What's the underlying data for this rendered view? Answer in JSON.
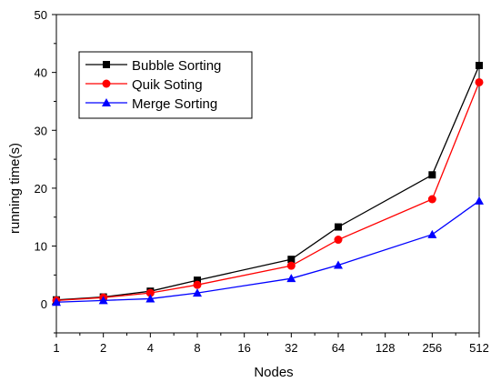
{
  "chart_data": {
    "type": "line",
    "title": "",
    "xlabel": "Nodes",
    "ylabel": "running time(s)",
    "x_scale": "log2",
    "x_ticks": [
      "1",
      "2",
      "4",
      "8",
      "16",
      "32",
      "64",
      "128",
      "256",
      "512"
    ],
    "ylim": [
      -5,
      50
    ],
    "y_ticks": [
      "0",
      "10",
      "20",
      "30",
      "40",
      "50"
    ],
    "grid": false,
    "legend_position": "top-left",
    "x": [
      1,
      2,
      4,
      8,
      32,
      64,
      256,
      512
    ],
    "series": [
      {
        "name": "Bubble Sorting",
        "color": "#000000",
        "marker": "square",
        "values": [
          0.7,
          1.2,
          2.2,
          4.1,
          7.7,
          13.3,
          22.3,
          41.2
        ]
      },
      {
        "name": "Quik Soting",
        "color": "#ff0000",
        "marker": "circle",
        "values": [
          0.6,
          1.1,
          1.9,
          3.3,
          6.6,
          11.1,
          18.1,
          38.3
        ]
      },
      {
        "name": "Merge Sorting",
        "color": "#0000ff",
        "marker": "triangle",
        "values": [
          0.3,
          0.6,
          0.9,
          1.9,
          4.4,
          6.7,
          12.0,
          17.8
        ]
      }
    ]
  }
}
